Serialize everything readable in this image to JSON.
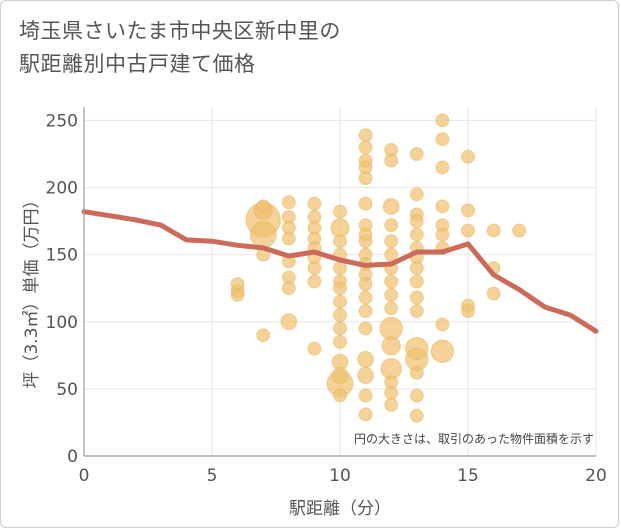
{
  "title_lines": [
    "埼玉県さいたま市中央区新中里の",
    "駅距離別中古戸建て価格"
  ],
  "chart_data": {
    "type": "scatter",
    "title": "埼玉県さいたま市中央区新中里の駅距離別中古戸建て価格",
    "xlabel": "駅距離（分）",
    "ylabel": "坪（3.3㎡）単価（万円）",
    "xlim": [
      0,
      20
    ],
    "ylim": [
      0,
      260
    ],
    "xticks": [
      0,
      5,
      10,
      15,
      20
    ],
    "yticks": [
      0,
      50,
      100,
      150,
      200,
      250
    ],
    "grid": true,
    "annotation": "円の大きさは、取引のあった物件面積を示す",
    "colors": {
      "bubble": "#f0c070",
      "bubble_stroke": "#e8b25a",
      "line": "#cd6b5a",
      "grid": "#e6e6e6",
      "axis": "#999999"
    },
    "scatter": [
      {
        "x": 6,
        "y": 120,
        "s": 1
      },
      {
        "x": 6,
        "y": 123,
        "s": 1
      },
      {
        "x": 6,
        "y": 128,
        "s": 1
      },
      {
        "x": 7,
        "y": 176,
        "s": 7
      },
      {
        "x": 7,
        "y": 165,
        "s": 4
      },
      {
        "x": 7,
        "y": 183,
        "s": 2
      },
      {
        "x": 7,
        "y": 186,
        "s": 1
      },
      {
        "x": 7,
        "y": 150,
        "s": 1
      },
      {
        "x": 7,
        "y": 90,
        "s": 1
      },
      {
        "x": 8,
        "y": 189,
        "s": 1
      },
      {
        "x": 8,
        "y": 178,
        "s": 1
      },
      {
        "x": 8,
        "y": 170,
        "s": 1
      },
      {
        "x": 8,
        "y": 162,
        "s": 1
      },
      {
        "x": 8,
        "y": 145,
        "s": 1
      },
      {
        "x": 8,
        "y": 133,
        "s": 1
      },
      {
        "x": 8,
        "y": 125,
        "s": 1
      },
      {
        "x": 8,
        "y": 100,
        "s": 1.5
      },
      {
        "x": 9,
        "y": 188,
        "s": 1
      },
      {
        "x": 9,
        "y": 178,
        "s": 1
      },
      {
        "x": 9,
        "y": 170,
        "s": 1
      },
      {
        "x": 9,
        "y": 162,
        "s": 1
      },
      {
        "x": 9,
        "y": 155,
        "s": 1
      },
      {
        "x": 9,
        "y": 148,
        "s": 1
      },
      {
        "x": 9,
        "y": 140,
        "s": 1
      },
      {
        "x": 9,
        "y": 130,
        "s": 1
      },
      {
        "x": 9,
        "y": 80,
        "s": 1
      },
      {
        "x": 10,
        "y": 182,
        "s": 1
      },
      {
        "x": 10,
        "y": 170,
        "s": 2
      },
      {
        "x": 10,
        "y": 160,
        "s": 1
      },
      {
        "x": 10,
        "y": 150,
        "s": 1
      },
      {
        "x": 10,
        "y": 140,
        "s": 1
      },
      {
        "x": 10,
        "y": 130,
        "s": 1
      },
      {
        "x": 10,
        "y": 125,
        "s": 1
      },
      {
        "x": 10,
        "y": 115,
        "s": 1
      },
      {
        "x": 10,
        "y": 105,
        "s": 1
      },
      {
        "x": 10,
        "y": 95,
        "s": 1
      },
      {
        "x": 10,
        "y": 85,
        "s": 1
      },
      {
        "x": 10,
        "y": 70,
        "s": 1.5
      },
      {
        "x": 10,
        "y": 60,
        "s": 1.5
      },
      {
        "x": 10,
        "y": 54,
        "s": 4
      },
      {
        "x": 10,
        "y": 45,
        "s": 1
      },
      {
        "x": 11,
        "y": 239,
        "s": 1
      },
      {
        "x": 11,
        "y": 230,
        "s": 1
      },
      {
        "x": 11,
        "y": 220,
        "s": 1
      },
      {
        "x": 11,
        "y": 215,
        "s": 1
      },
      {
        "x": 11,
        "y": 207,
        "s": 1
      },
      {
        "x": 11,
        "y": 188,
        "s": 1
      },
      {
        "x": 11,
        "y": 172,
        "s": 1
      },
      {
        "x": 11,
        "y": 165,
        "s": 1
      },
      {
        "x": 11,
        "y": 160,
        "s": 1
      },
      {
        "x": 11,
        "y": 150,
        "s": 1
      },
      {
        "x": 11,
        "y": 143,
        "s": 1
      },
      {
        "x": 11,
        "y": 135,
        "s": 1
      },
      {
        "x": 11,
        "y": 128,
        "s": 1
      },
      {
        "x": 11,
        "y": 118,
        "s": 1
      },
      {
        "x": 11,
        "y": 108,
        "s": 1
      },
      {
        "x": 11,
        "y": 95,
        "s": 1
      },
      {
        "x": 11,
        "y": 72,
        "s": 1.5
      },
      {
        "x": 11,
        "y": 60,
        "s": 1.5
      },
      {
        "x": 11,
        "y": 45,
        "s": 1
      },
      {
        "x": 11,
        "y": 31,
        "s": 1
      },
      {
        "x": 12,
        "y": 228,
        "s": 1
      },
      {
        "x": 12,
        "y": 220,
        "s": 1
      },
      {
        "x": 12,
        "y": 186,
        "s": 1.5
      },
      {
        "x": 12,
        "y": 172,
        "s": 1
      },
      {
        "x": 12,
        "y": 160,
        "s": 1
      },
      {
        "x": 12,
        "y": 150,
        "s": 1
      },
      {
        "x": 12,
        "y": 140,
        "s": 1
      },
      {
        "x": 12,
        "y": 130,
        "s": 1
      },
      {
        "x": 12,
        "y": 120,
        "s": 1
      },
      {
        "x": 12,
        "y": 110,
        "s": 1
      },
      {
        "x": 12,
        "y": 95,
        "s": 3
      },
      {
        "x": 12,
        "y": 82,
        "s": 2
      },
      {
        "x": 12,
        "y": 65,
        "s": 2.5
      },
      {
        "x": 12,
        "y": 55,
        "s": 1
      },
      {
        "x": 12,
        "y": 47,
        "s": 1
      },
      {
        "x": 12,
        "y": 38,
        "s": 1
      },
      {
        "x": 13,
        "y": 225,
        "s": 1
      },
      {
        "x": 13,
        "y": 195,
        "s": 1
      },
      {
        "x": 13,
        "y": 180,
        "s": 1
      },
      {
        "x": 13,
        "y": 175,
        "s": 1
      },
      {
        "x": 13,
        "y": 165,
        "s": 1
      },
      {
        "x": 13,
        "y": 155,
        "s": 1
      },
      {
        "x": 13,
        "y": 148,
        "s": 1
      },
      {
        "x": 13,
        "y": 140,
        "s": 1
      },
      {
        "x": 13,
        "y": 130,
        "s": 1
      },
      {
        "x": 13,
        "y": 118,
        "s": 1
      },
      {
        "x": 13,
        "y": 108,
        "s": 1
      },
      {
        "x": 13,
        "y": 80,
        "s": 3
      },
      {
        "x": 13,
        "y": 72,
        "s": 3
      },
      {
        "x": 13,
        "y": 62,
        "s": 1
      },
      {
        "x": 13,
        "y": 45,
        "s": 1
      },
      {
        "x": 13,
        "y": 30,
        "s": 1
      },
      {
        "x": 14,
        "y": 250,
        "s": 1
      },
      {
        "x": 14,
        "y": 236,
        "s": 1
      },
      {
        "x": 14,
        "y": 215,
        "s": 1
      },
      {
        "x": 14,
        "y": 186,
        "s": 1
      },
      {
        "x": 14,
        "y": 172,
        "s": 1
      },
      {
        "x": 14,
        "y": 165,
        "s": 1
      },
      {
        "x": 14,
        "y": 155,
        "s": 1
      },
      {
        "x": 14,
        "y": 98,
        "s": 1
      },
      {
        "x": 14,
        "y": 78,
        "s": 3
      },
      {
        "x": 15,
        "y": 223,
        "s": 1
      },
      {
        "x": 15,
        "y": 183,
        "s": 1
      },
      {
        "x": 15,
        "y": 168,
        "s": 1
      },
      {
        "x": 15,
        "y": 112,
        "s": 1
      },
      {
        "x": 15,
        "y": 108,
        "s": 1
      },
      {
        "x": 16,
        "y": 168,
        "s": 1
      },
      {
        "x": 16,
        "y": 140,
        "s": 1
      },
      {
        "x": 16,
        "y": 121,
        "s": 1
      },
      {
        "x": 17,
        "y": 168,
        "s": 1
      }
    ],
    "trend_line": {
      "x": [
        0,
        1,
        2,
        3,
        4,
        5,
        6,
        7,
        8,
        9,
        10,
        11,
        12,
        13,
        14,
        15,
        16,
        17,
        18,
        19,
        20
      ],
      "y": [
        182,
        179,
        176,
        172,
        161,
        160,
        157,
        155,
        149,
        152,
        146,
        142,
        143,
        152,
        152,
        158,
        135,
        124,
        111,
        105,
        93
      ]
    }
  }
}
